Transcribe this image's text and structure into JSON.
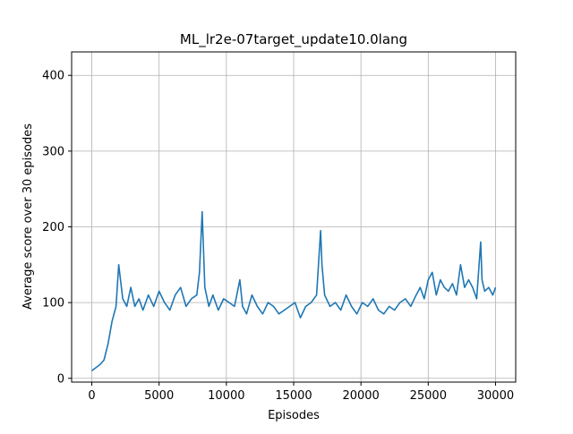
{
  "chart_data": {
    "type": "line",
    "title": "ML_lr2e-07target_update10.0lang",
    "xlabel": "Episodes",
    "ylabel": "Average score over 30 episodes",
    "xlim": [
      -1500,
      31500
    ],
    "ylim": [
      -5,
      431
    ],
    "xticks": [
      0,
      5000,
      10000,
      15000,
      20000,
      25000,
      30000
    ],
    "yticks": [
      0,
      100,
      200,
      300,
      400
    ],
    "xtick_labels": [
      "0",
      "5000",
      "10000",
      "15000",
      "20000",
      "25000",
      "30000"
    ],
    "ytick_labels": [
      "0",
      "100",
      "200",
      "300",
      "400"
    ],
    "grid": true,
    "legend": "none",
    "series": [
      {
        "color": "#1f77b4",
        "x": [
          0,
          300,
          600,
          900,
          1200,
          1500,
          1800,
          2000,
          2300,
          2600,
          2900,
          3200,
          3500,
          3800,
          4200,
          4600,
          5000,
          5400,
          5800,
          6200,
          6600,
          7000,
          7400,
          7800,
          8000,
          8200,
          8400,
          8700,
          9000,
          9400,
          9800,
          10200,
          10600,
          11000,
          11200,
          11500,
          11900,
          12300,
          12700,
          13100,
          13500,
          13900,
          14300,
          14700,
          15100,
          15500,
          15900,
          16300,
          16700,
          17000,
          17100,
          17300,
          17700,
          18100,
          18500,
          18900,
          19300,
          19700,
          20100,
          20500,
          20900,
          21300,
          21700,
          22100,
          22500,
          22900,
          23300,
          23700,
          24100,
          24400,
          24700,
          25000,
          25300,
          25600,
          25900,
          26200,
          26500,
          26800,
          27100,
          27400,
          27700,
          28000,
          28300,
          28600,
          28900,
          29000,
          29200,
          29500,
          29800,
          30000
        ],
        "y": [
          10,
          14,
          18,
          24,
          45,
          75,
          95,
          150,
          105,
          95,
          120,
          95,
          105,
          90,
          110,
          95,
          115,
          100,
          90,
          110,
          120,
          95,
          105,
          110,
          140,
          220,
          120,
          95,
          110,
          90,
          105,
          100,
          95,
          130,
          95,
          85,
          110,
          95,
          85,
          100,
          95,
          85,
          90,
          95,
          100,
          80,
          95,
          100,
          110,
          195,
          150,
          110,
          95,
          100,
          90,
          110,
          95,
          85,
          100,
          95,
          105,
          90,
          85,
          95,
          90,
          100,
          105,
          95,
          110,
          120,
          105,
          130,
          140,
          110,
          130,
          120,
          115,
          125,
          110,
          150,
          120,
          130,
          120,
          105,
          180,
          130,
          115,
          120,
          110,
          120
        ]
      }
    ]
  }
}
